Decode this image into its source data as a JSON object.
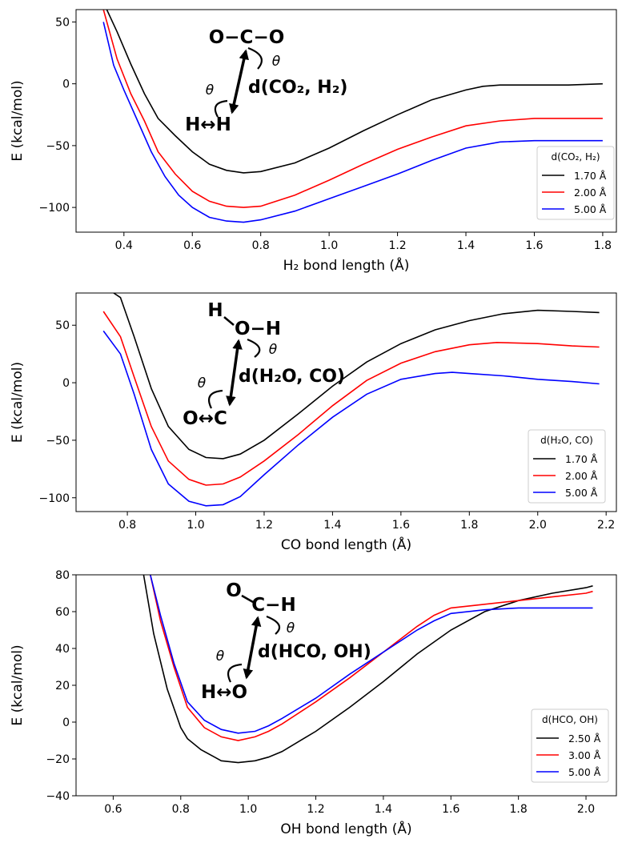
{
  "chart_data": [
    {
      "type": "line",
      "xlabel": "H₂ bond length (Å)",
      "ylabel": "E (kcal/mol)",
      "xlim": [
        0.26,
        1.84
      ],
      "ylim": [
        -120,
        60
      ],
      "xticks": [
        "0.4",
        "0.6",
        "0.8",
        "1.0",
        "1.2",
        "1.4",
        "1.6",
        "1.8"
      ],
      "yticks": [
        "50",
        "0",
        "−50",
        "−100"
      ],
      "legend": {
        "title": "d(CO₂, H₂)",
        "position": "right"
      },
      "inset": {
        "top": "O−C−O",
        "bottom": "H↔H",
        "label": "d(CO₂, H₂)",
        "angle": "θ"
      },
      "series": [
        {
          "name": "1.70 Å",
          "color": "#000000",
          "x": [
            0.35,
            0.38,
            0.42,
            0.46,
            0.5,
            0.55,
            0.6,
            0.65,
            0.7,
            0.75,
            0.8,
            0.9,
            1.0,
            1.1,
            1.2,
            1.3,
            1.4,
            1.45,
            1.5,
            1.6,
            1.7,
            1.8
          ],
          "y": [
            60,
            42,
            16,
            -8,
            -28,
            -42,
            -55,
            -65,
            -70,
            -72,
            -71,
            -64,
            -52,
            -38,
            -25,
            -13,
            -5,
            -2,
            -1,
            -1,
            -1,
            0
          ]
        },
        {
          "name": "2.00 Å",
          "color": "#ff0000",
          "x": [
            0.34,
            0.38,
            0.42,
            0.46,
            0.5,
            0.55,
            0.6,
            0.65,
            0.7,
            0.75,
            0.8,
            0.9,
            1.0,
            1.1,
            1.2,
            1.3,
            1.4,
            1.5,
            1.6,
            1.7,
            1.8
          ],
          "y": [
            60,
            20,
            -8,
            -30,
            -55,
            -73,
            -87,
            -95,
            -99,
            -100,
            -99,
            -90,
            -78,
            -65,
            -53,
            -43,
            -34,
            -30,
            -28,
            -28,
            -28
          ]
        },
        {
          "name": "5.00 Å",
          "color": "#0000ff",
          "x": [
            0.34,
            0.37,
            0.4,
            0.44,
            0.48,
            0.52,
            0.56,
            0.6,
            0.65,
            0.7,
            0.75,
            0.8,
            0.9,
            1.0,
            1.1,
            1.2,
            1.3,
            1.4,
            1.5,
            1.6,
            1.7,
            1.8
          ],
          "y": [
            50,
            15,
            -5,
            -30,
            -55,
            -75,
            -90,
            -100,
            -108,
            -111,
            -112,
            -110,
            -103,
            -93,
            -83,
            -73,
            -62,
            -52,
            -47,
            -46,
            -46,
            -46
          ]
        }
      ]
    },
    {
      "type": "line",
      "xlabel": "CO bond length (Å)",
      "ylabel": "E (kcal/mol)",
      "xlim": [
        0.65,
        2.23
      ],
      "ylim": [
        -112,
        78
      ],
      "xticks": [
        "0.8",
        "1.0",
        "1.2",
        "1.4",
        "1.6",
        "1.8",
        "2.0",
        "2.2"
      ],
      "yticks": [
        "50",
        "0",
        "−50",
        "−100"
      ],
      "legend": {
        "title": "d(H₂O, CO)",
        "position": "right"
      },
      "inset": {
        "topLeft": "H",
        "top": "O−H",
        "bottom": "O↔C",
        "label": "d(H₂O, CO)",
        "angle": "θ"
      },
      "series": [
        {
          "name": "1.70 Å",
          "color": "#000000",
          "x": [
            0.76,
            0.78,
            0.82,
            0.87,
            0.92,
            0.98,
            1.03,
            1.08,
            1.13,
            1.2,
            1.3,
            1.4,
            1.5,
            1.6,
            1.7,
            1.8,
            1.9,
            2.0,
            2.1,
            2.18
          ],
          "y": [
            78,
            74,
            40,
            -5,
            -38,
            -58,
            -65,
            -66,
            -62,
            -50,
            -27,
            -3,
            18,
            34,
            46,
            54,
            60,
            63,
            62,
            61
          ]
        },
        {
          "name": "2.00 Å",
          "color": "#ff0000",
          "x": [
            0.73,
            0.78,
            0.82,
            0.87,
            0.92,
            0.98,
            1.03,
            1.08,
            1.13,
            1.2,
            1.3,
            1.4,
            1.5,
            1.6,
            1.7,
            1.8,
            1.88,
            2.0,
            2.1,
            2.18
          ],
          "y": [
            62,
            40,
            5,
            -38,
            -68,
            -84,
            -89,
            -88,
            -82,
            -68,
            -45,
            -20,
            2,
            17,
            27,
            33,
            35,
            34,
            32,
            31
          ]
        },
        {
          "name": "5.00 Å",
          "color": "#0000ff",
          "x": [
            0.73,
            0.78,
            0.82,
            0.87,
            0.92,
            0.98,
            1.03,
            1.08,
            1.13,
            1.2,
            1.3,
            1.4,
            1.5,
            1.6,
            1.7,
            1.75,
            1.8,
            1.9,
            2.0,
            2.1,
            2.18
          ],
          "y": [
            45,
            25,
            -10,
            -58,
            -88,
            -103,
            -107,
            -106,
            -99,
            -80,
            -54,
            -30,
            -10,
            3,
            8,
            9,
            8,
            6,
            3,
            1,
            -1
          ]
        }
      ]
    },
    {
      "type": "line",
      "xlabel": "OH bond length (Å)",
      "ylabel": "E (kcal/mol)",
      "xlim": [
        0.49,
        2.09
      ],
      "ylim": [
        -40,
        80
      ],
      "xticks": [
        "0.6",
        "0.8",
        "1.0",
        "1.2",
        "1.4",
        "1.6",
        "1.8",
        "2.0"
      ],
      "yticks": [
        "80",
        "60",
        "40",
        "20",
        "0",
        "−20",
        "−40"
      ],
      "legend": {
        "title": "d(HCO, OH)",
        "position": "lower right"
      },
      "inset": {
        "topLeft": "O",
        "top": "C−H",
        "bottom": "H↔O",
        "label": "d(HCO, OH)",
        "angle": "θ"
      },
      "series": [
        {
          "name": "2.50 Å",
          "color": "#000000",
          "x": [
            0.69,
            0.72,
            0.76,
            0.8,
            0.82,
            0.86,
            0.9,
            0.92,
            0.97,
            1.02,
            1.06,
            1.1,
            1.2,
            1.3,
            1.4,
            1.5,
            1.6,
            1.7,
            1.8,
            1.9,
            2.0,
            2.02
          ],
          "y": [
            80,
            48,
            18,
            -3,
            -9,
            -15,
            -19,
            -21,
            -22,
            -21,
            -19,
            -16,
            -5,
            8,
            22,
            37,
            50,
            60,
            66,
            70,
            73,
            74
          ]
        },
        {
          "name": "3.00 Å",
          "color": "#ff0000",
          "x": [
            0.71,
            0.74,
            0.78,
            0.82,
            0.87,
            0.92,
            0.97,
            1.02,
            1.06,
            1.1,
            1.2,
            1.3,
            1.4,
            1.5,
            1.55,
            1.6,
            1.7,
            1.8,
            1.9,
            2.0,
            2.02
          ],
          "y": [
            80,
            55,
            30,
            8,
            -3,
            -8,
            -10,
            -8,
            -5,
            -1,
            11,
            24,
            38,
            52,
            58,
            62,
            64,
            66,
            68,
            70,
            71
          ]
        },
        {
          "name": "5.00 Å",
          "color": "#0000ff",
          "x": [
            0.71,
            0.74,
            0.78,
            0.82,
            0.87,
            0.92,
            0.97,
            1.02,
            1.06,
            1.1,
            1.2,
            1.3,
            1.4,
            1.5,
            1.55,
            1.6,
            1.7,
            1.8,
            1.9,
            2.0,
            2.02
          ],
          "y": [
            80,
            58,
            32,
            11,
            1,
            -4,
            -6,
            -5,
            -2,
            2,
            13,
            26,
            38,
            50,
            55,
            59,
            61,
            62,
            62,
            62,
            62
          ]
        }
      ]
    }
  ]
}
